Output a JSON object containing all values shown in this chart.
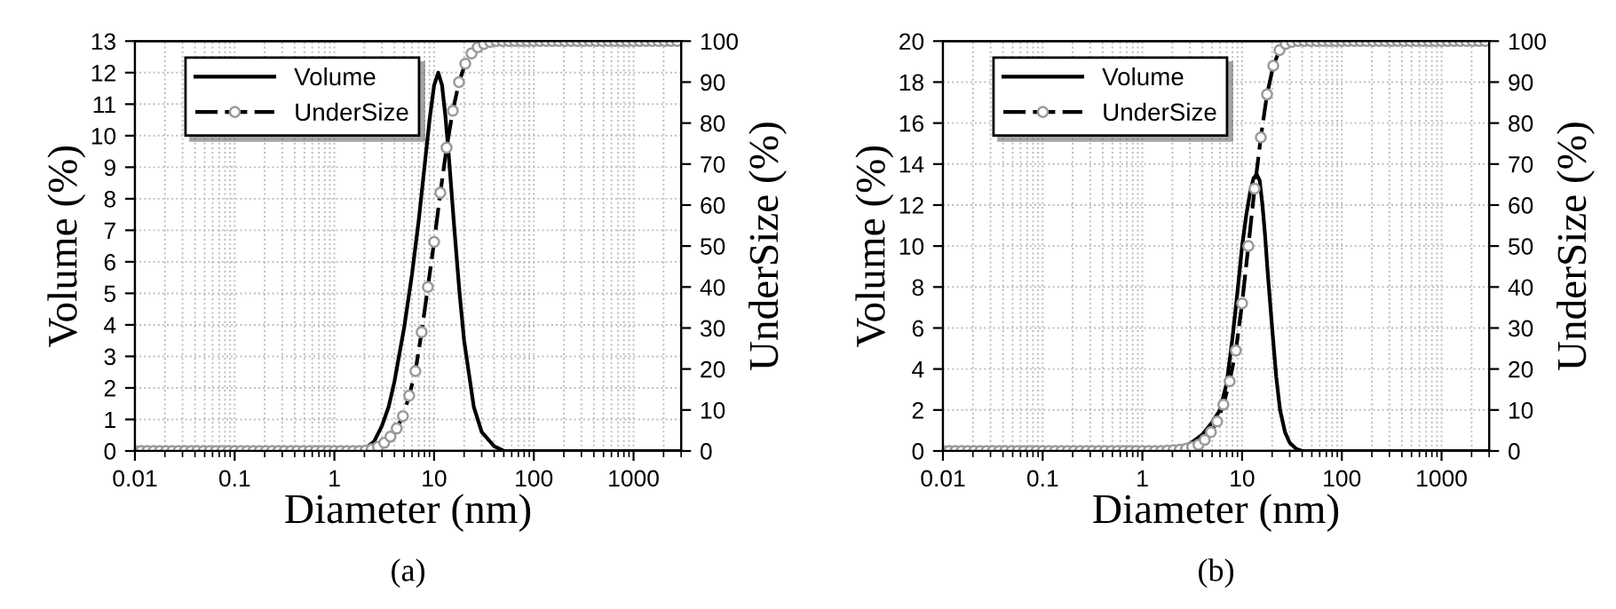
{
  "chart_data": [
    {
      "type": "line",
      "xlabel": "Diameter (nm)",
      "ylabel": "Volume (%)",
      "y2label": "UnderSize (%)",
      "annotations": [
        "(a)"
      ],
      "log": "x",
      "xlim": [
        0.01,
        3000
      ],
      "xticks": [
        0.01,
        0.1,
        1,
        10,
        100,
        1000
      ],
      "ylim": [
        0,
        13
      ],
      "yticks": [
        0,
        1,
        2,
        3,
        4,
        5,
        6,
        7,
        8,
        9,
        10,
        11,
        12,
        13
      ],
      "y2lim": [
        0,
        100
      ],
      "y2ticks": [
        0,
        10,
        20,
        30,
        40,
        50,
        60,
        70,
        80,
        90,
        100
      ],
      "grid": true,
      "legend": "top left",
      "series": [
        {
          "name": "Volume",
          "color": "#000000",
          "line_style": "solid",
          "marker": "none",
          "x": [
            0.01,
            1,
            1.5,
            2,
            2.5,
            3,
            3.5,
            4,
            5,
            6,
            7,
            8,
            9,
            10,
            11,
            12,
            13,
            14,
            16,
            18,
            20,
            25,
            30,
            40,
            50,
            3000
          ],
          "values": [
            0,
            0,
            0,
            0.05,
            0.3,
            0.8,
            1.4,
            2.2,
            3.9,
            5.6,
            7.3,
            9,
            10.5,
            11.6,
            12,
            11.6,
            10.6,
            9.4,
            7,
            5,
            3.5,
            1.4,
            0.6,
            0.15,
            0,
            0
          ]
        },
        {
          "name": "UnderSize",
          "color": "#000000",
          "axis": "y2",
          "line_style": "dashed",
          "marker": "circle",
          "x": [
            0.01,
            0.01155,
            0.01334,
            0.0154,
            0.01778,
            0.02054,
            0.02371,
            0.02738,
            0.03162,
            0.03652,
            0.04217,
            0.0487,
            0.05623,
            0.06494,
            0.07499,
            0.0866,
            0.1,
            0.1155,
            0.1334,
            0.154,
            0.1778,
            0.2054,
            0.2371,
            0.2738,
            0.3162,
            0.3652,
            0.4217,
            0.487,
            0.5623,
            0.6494,
            0.7499,
            0.866,
            1,
            1.155,
            1.334,
            1.54,
            1.778,
            2.054,
            2.371,
            2.738,
            3.162,
            3.652,
            4.217,
            4.87,
            5.623,
            6.494,
            7.499,
            8.66,
            10,
            11.55,
            13.34,
            15.4,
            17.78,
            20.54,
            23.71,
            27.38,
            31.62,
            36.52,
            42.17,
            48.7,
            56.23,
            64.94,
            74.99,
            86.6,
            100,
            115.5,
            133.4,
            154,
            177.8,
            205.4,
            237.1,
            273.8,
            316.2,
            365.2,
            421.7,
            487,
            562.3,
            649.4,
            749.9,
            866,
            1000,
            1155,
            1334,
            1540,
            1778,
            2054,
            2371,
            2738
          ],
          "values": [
            0,
            0,
            0,
            0,
            0,
            0,
            0,
            0,
            0,
            0,
            0,
            0,
            0,
            0,
            0,
            0,
            0,
            0,
            0,
            0,
            0,
            0,
            0,
            0,
            0,
            0,
            0,
            0,
            0,
            0,
            0,
            0,
            0,
            0,
            0,
            0,
            0,
            0.1,
            0.4,
            1,
            2,
            3.5,
            5.5,
            8.5,
            13.5,
            19.5,
            29,
            40,
            51,
            63,
            74,
            83,
            90,
            94.5,
            97,
            98.5,
            99.3,
            99.8,
            100,
            100,
            100,
            100,
            100,
            100,
            100,
            100,
            100,
            100,
            100,
            100,
            100,
            100,
            100,
            100,
            100,
            100,
            100,
            100,
            100,
            100,
            100,
            100,
            100,
            100,
            100,
            100,
            100,
            100
          ]
        }
      ]
    },
    {
      "type": "line",
      "xlabel": "Diameter (nm)",
      "ylabel": "Volume (%)",
      "y2label": "UnderSize (%)",
      "annotations": [
        "(b)"
      ],
      "log": "x",
      "xlim": [
        0.01,
        3000
      ],
      "xticks": [
        0.01,
        0.1,
        1,
        10,
        100,
        1000
      ],
      "ylim": [
        0,
        20
      ],
      "yticks": [
        0,
        2,
        4,
        6,
        8,
        10,
        12,
        14,
        16,
        18,
        20
      ],
      "y2lim": [
        0,
        100
      ],
      "y2ticks": [
        0,
        10,
        20,
        30,
        40,
        50,
        60,
        70,
        80,
        90,
        100
      ],
      "grid": true,
      "legend": "top left",
      "series": [
        {
          "name": "Volume",
          "color": "#000000",
          "line_style": "solid",
          "marker": "none",
          "x": [
            0.01,
            1,
            2,
            3,
            4,
            5,
            6,
            7,
            8,
            9,
            10,
            11,
            12,
            13,
            14,
            15,
            16,
            17,
            18,
            20,
            22,
            24,
            27,
            30,
            35,
            40,
            3000
          ],
          "values": [
            0,
            0,
            0.1,
            0.35,
            0.8,
            1.4,
            2,
            3.3,
            5.5,
            7.8,
            10,
            11.5,
            12.6,
            13.3,
            13.5,
            13.2,
            12,
            10.5,
            8.8,
            6,
            3.6,
            2,
            0.9,
            0.4,
            0.1,
            0,
            0
          ]
        },
        {
          "name": "UnderSize",
          "color": "#000000",
          "axis": "y2",
          "line_style": "dashed",
          "marker": "circle",
          "x": [
            0.01,
            0.01155,
            0.01334,
            0.0154,
            0.01778,
            0.02054,
            0.02371,
            0.02738,
            0.03162,
            0.03652,
            0.04217,
            0.0487,
            0.05623,
            0.06494,
            0.07499,
            0.0866,
            0.1,
            0.1155,
            0.1334,
            0.154,
            0.1778,
            0.2054,
            0.2371,
            0.2738,
            0.3162,
            0.3652,
            0.4217,
            0.487,
            0.5623,
            0.6494,
            0.7499,
            0.866,
            1,
            1.155,
            1.334,
            1.54,
            1.778,
            2.054,
            2.371,
            2.738,
            3.162,
            3.652,
            4.217,
            4.87,
            5.623,
            6.494,
            7.499,
            8.66,
            10,
            11.55,
            13.34,
            15.4,
            17.78,
            20.54,
            23.71,
            27.38,
            31.62,
            36.52,
            42.17,
            48.7,
            56.23,
            64.94,
            74.99,
            86.6,
            100,
            115.5,
            133.4,
            154,
            177.8,
            205.4,
            237.1,
            273.8,
            316.2,
            365.2,
            421.7,
            487,
            562.3,
            649.4,
            749.9,
            866,
            1000,
            1155,
            1334,
            1540,
            1778,
            2054,
            2371,
            2738
          ],
          "values": [
            0,
            0,
            0,
            0,
            0,
            0,
            0,
            0,
            0,
            0,
            0,
            0,
            0,
            0,
            0,
            0,
            0,
            0,
            0,
            0,
            0,
            0,
            0,
            0,
            0,
            0,
            0,
            0,
            0,
            0,
            0,
            0,
            0,
            0,
            0,
            0,
            0.1,
            0.2,
            0.3,
            0.5,
            0.9,
            1.5,
            2.7,
            4.6,
            7.2,
            11.3,
            17,
            24.5,
            36,
            50,
            64,
            76.5,
            87,
            94,
            97.8,
            99.3,
            99.8,
            100,
            100,
            100,
            100,
            100,
            100,
            100,
            100,
            100,
            100,
            100,
            100,
            100,
            100,
            100,
            100,
            100,
            100,
            100,
            100,
            100,
            100,
            100,
            100,
            100,
            100,
            100,
            100,
            100,
            100,
            100
          ]
        }
      ]
    }
  ]
}
